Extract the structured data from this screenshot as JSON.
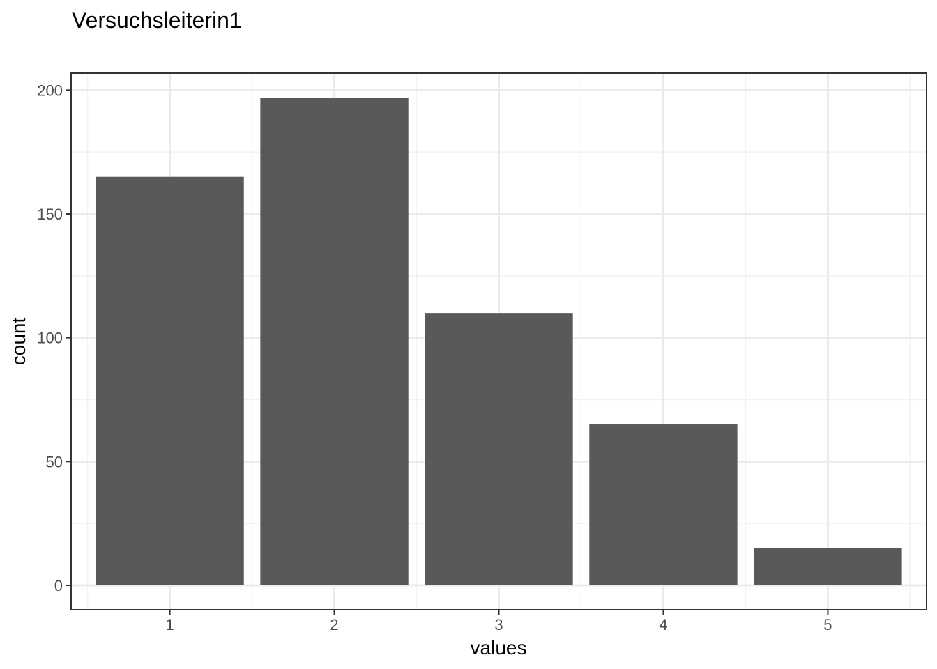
{
  "chart_data": {
    "type": "bar",
    "title": "Versuchsleiterin1",
    "xlabel": "values",
    "ylabel": "count",
    "categories": [
      "1",
      "2",
      "3",
      "4",
      "5"
    ],
    "values": [
      165,
      197,
      110,
      65,
      15
    ],
    "ylim": [
      -9.85,
      206.85
    ],
    "yticks": [
      0,
      50,
      100,
      150,
      200
    ],
    "grid": true,
    "theme": "bw",
    "legend": "none",
    "colors": {
      "bar": "#595959",
      "grid_major": "#ebebeb",
      "grid_minor": "#f2f2f2",
      "panel_border": "#333333",
      "tick_text": "#4d4d4d"
    }
  }
}
